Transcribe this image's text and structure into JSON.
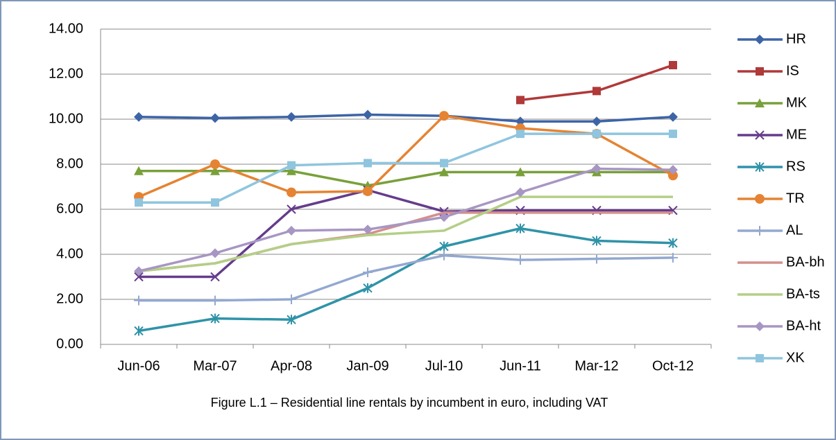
{
  "chart_data": {
    "type": "line",
    "caption": "Figure L.1 – Residential line rentals by incumbent in euro, including VAT",
    "categories": [
      "Jun-06",
      "Mar-07",
      "Apr-08",
      "Jan-09",
      "Jul-10",
      "Jun-11",
      "Mar-12",
      "Oct-12"
    ],
    "ylim": [
      0,
      14
    ],
    "yticks": [
      {
        "value": 0,
        "label": "0.00"
      },
      {
        "value": 2,
        "label": "2.00"
      },
      {
        "value": 4,
        "label": "4.00"
      },
      {
        "value": 6,
        "label": "6.00"
      },
      {
        "value": 8,
        "label": "8.00"
      },
      {
        "value": 10,
        "label": "10.00"
      },
      {
        "value": 12,
        "label": "12.00"
      },
      {
        "value": 14,
        "label": "14.00"
      }
    ],
    "grid": true,
    "legend": "right",
    "series": [
      {
        "name": "HR",
        "color": "#3d64a6",
        "marker": "diamond",
        "values": [
          10.1,
          10.05,
          10.1,
          10.2,
          10.15,
          9.9,
          9.9,
          10.1
        ]
      },
      {
        "name": "IS",
        "color": "#b0393a",
        "marker": "square",
        "values": [
          null,
          null,
          null,
          null,
          null,
          10.85,
          11.25,
          12.4
        ]
      },
      {
        "name": "MK",
        "color": "#79a03a",
        "marker": "triangle",
        "values": [
          7.7,
          7.7,
          7.7,
          7.05,
          7.65,
          7.65,
          7.65,
          7.65
        ]
      },
      {
        "name": "ME",
        "color": "#653c8c",
        "marker": "x",
        "values": [
          3.0,
          3.0,
          6.0,
          6.85,
          5.9,
          5.95,
          5.95,
          5.95
        ]
      },
      {
        "name": "RS",
        "color": "#2f93a8",
        "marker": "asterisk",
        "values": [
          0.6,
          1.15,
          1.1,
          2.5,
          4.35,
          5.15,
          4.6,
          4.5
        ]
      },
      {
        "name": "TR",
        "color": "#e58332",
        "marker": "circle",
        "values": [
          6.55,
          8.0,
          6.75,
          6.8,
          10.15,
          9.6,
          9.35,
          7.5
        ]
      },
      {
        "name": "AL",
        "color": "#93a8d0",
        "marker": "plus",
        "values": [
          1.95,
          1.95,
          2.0,
          3.2,
          3.95,
          3.75,
          3.8,
          3.85
        ]
      },
      {
        "name": "BA-bh",
        "color": "#d48f8c",
        "marker": "none",
        "values": [
          3.25,
          3.6,
          4.45,
          4.9,
          5.85,
          5.85,
          5.85,
          5.85
        ]
      },
      {
        "name": "BA-ts",
        "color": "#b4cf86",
        "marker": "none",
        "values": [
          3.25,
          3.6,
          4.45,
          4.85,
          5.05,
          6.55,
          6.55,
          6.55
        ]
      },
      {
        "name": "BA-ht",
        "color": "#a796c3",
        "marker": "diamond",
        "values": [
          3.25,
          4.05,
          5.05,
          5.1,
          5.65,
          6.75,
          7.8,
          7.75
        ]
      },
      {
        "name": "XK",
        "color": "#8fc5de",
        "marker": "square",
        "values": [
          6.3,
          6.3,
          7.95,
          8.05,
          8.05,
          9.35,
          9.35,
          9.35
        ]
      }
    ]
  }
}
